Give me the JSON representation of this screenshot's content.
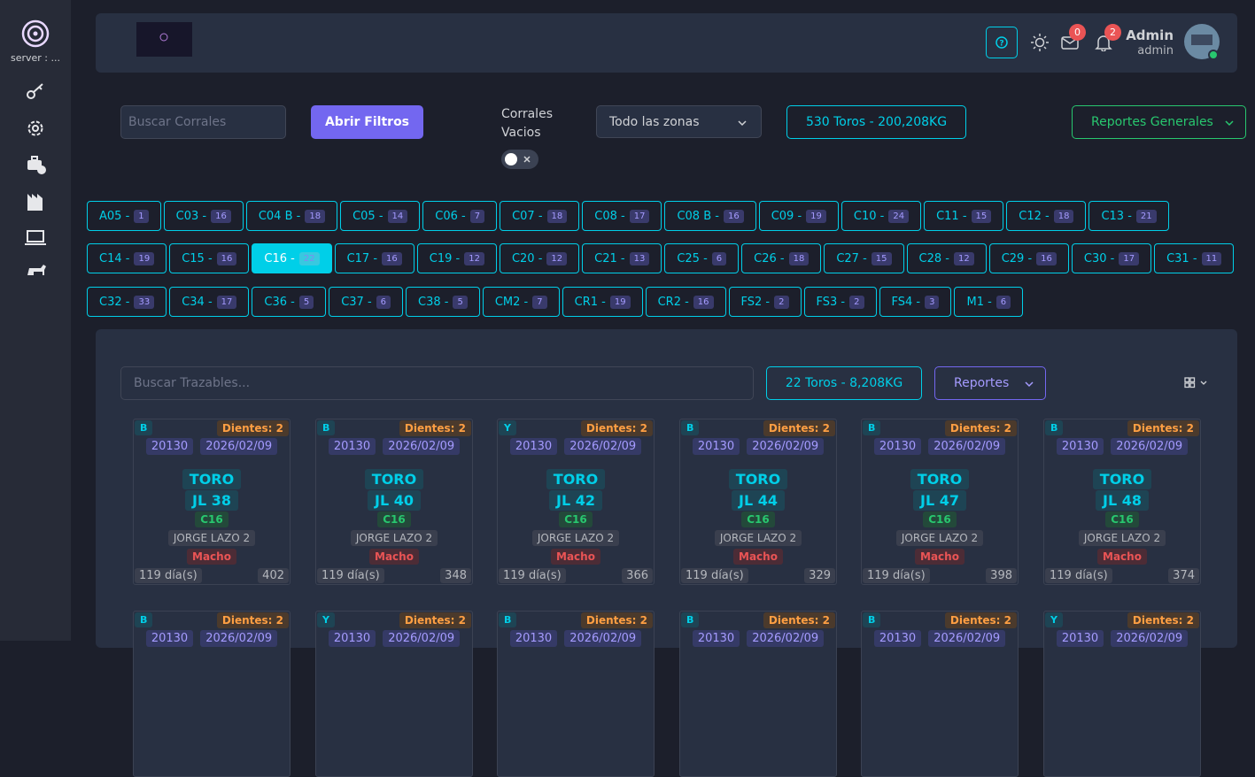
{
  "sidebar": {
    "server": "server : ..."
  },
  "header": {
    "user_name": "Admin",
    "user_role": "admin",
    "mail_count": 0,
    "notification_count": 2
  },
  "toolbar": {
    "search_placeholder": "Buscar Corrales",
    "filter_button": "Abrir Filtros",
    "empty_toggle_label": "Corrales Vacios",
    "zone_select": "Todo las zonas",
    "summary": "530 Toros - 200,208KG",
    "reports_button": "Reportes Generales"
  },
  "corrals": [
    [
      {
        "label": "A05 -",
        "count": 1
      },
      {
        "label": "C03 -",
        "count": 16
      },
      {
        "label": "C04 B -",
        "count": 18
      },
      {
        "label": "C05 -",
        "count": 14
      },
      {
        "label": "C06 -",
        "count": 7
      },
      {
        "label": "C07 -",
        "count": 18
      },
      {
        "label": "C08 -",
        "count": 17
      },
      {
        "label": "C08 B -",
        "count": 16
      },
      {
        "label": "C09 -",
        "count": 19
      },
      {
        "label": "C10 -",
        "count": 24
      },
      {
        "label": "C11 -",
        "count": 15
      },
      {
        "label": "C12 -",
        "count": 18
      },
      {
        "label": "C13 -",
        "count": 21
      }
    ],
    [
      {
        "label": "C14 -",
        "count": 19
      },
      {
        "label": "C15 -",
        "count": 16
      },
      {
        "label": "C16 -",
        "count": 22,
        "active": true
      },
      {
        "label": "C17 -",
        "count": 16
      },
      {
        "label": "C19 -",
        "count": 12
      },
      {
        "label": "C20 -",
        "count": 12
      },
      {
        "label": "C21 -",
        "count": 13
      },
      {
        "label": "C25 -",
        "count": 6
      },
      {
        "label": "C26 -",
        "count": 18
      },
      {
        "label": "C27 -",
        "count": 15
      },
      {
        "label": "C28 -",
        "count": 12
      },
      {
        "label": "C29 -",
        "count": 16
      },
      {
        "label": "C30 -",
        "count": 17
      },
      {
        "label": "C31 -",
        "count": 11
      }
    ],
    [
      {
        "label": "C32 -",
        "count": 33
      },
      {
        "label": "C34 -",
        "count": 17
      },
      {
        "label": "C36 -",
        "count": 5
      },
      {
        "label": "C37 -",
        "count": 6
      },
      {
        "label": "C38 -",
        "count": 5
      },
      {
        "label": "CM2 -",
        "count": 7
      },
      {
        "label": "CR1 -",
        "count": 19
      },
      {
        "label": "CR2 -",
        "count": 16
      },
      {
        "label": "FS2 -",
        "count": 2
      },
      {
        "label": "FS3 -",
        "count": 2
      },
      {
        "label": "FS4 -",
        "count": 3
      },
      {
        "label": "M1 -",
        "count": 6
      }
    ]
  ],
  "panel": {
    "search_placeholder": "Buscar Trazables...",
    "summary": "22 Toros - 8,208KG",
    "reports_button": "Reportes"
  },
  "cards": [
    {
      "type": "B",
      "teeth": "Dientes: 2",
      "code": "20130",
      "date": "2026/02/09",
      "kind": "TORO",
      "tag": "JL 38",
      "corral": "C16",
      "owner": "JORGE LAZO 2",
      "sex": "Macho",
      "days": "119 día(s)",
      "weight": 402
    },
    {
      "type": "B",
      "teeth": "Dientes: 2",
      "code": "20130",
      "date": "2026/02/09",
      "kind": "TORO",
      "tag": "JL 40",
      "corral": "C16",
      "owner": "JORGE LAZO 2",
      "sex": "Macho",
      "days": "119 día(s)",
      "weight": 348
    },
    {
      "type": "Y",
      "teeth": "Dientes: 2",
      "code": "20130",
      "date": "2026/02/09",
      "kind": "TORO",
      "tag": "JL 42",
      "corral": "C16",
      "owner": "JORGE LAZO 2",
      "sex": "Macho",
      "days": "119 día(s)",
      "weight": 366
    },
    {
      "type": "B",
      "teeth": "Dientes: 2",
      "code": "20130",
      "date": "2026/02/09",
      "kind": "TORO",
      "tag": "JL 44",
      "corral": "C16",
      "owner": "JORGE LAZO 2",
      "sex": "Macho",
      "days": "119 día(s)",
      "weight": 329
    },
    {
      "type": "B",
      "teeth": "Dientes: 2",
      "code": "20130",
      "date": "2026/02/09",
      "kind": "TORO",
      "tag": "JL 47",
      "corral": "C16",
      "owner": "JORGE LAZO 2",
      "sex": "Macho",
      "days": "119 día(s)",
      "weight": 398
    },
    {
      "type": "B",
      "teeth": "Dientes: 2",
      "code": "20130",
      "date": "2026/02/09",
      "kind": "TORO",
      "tag": "JL 48",
      "corral": "C16",
      "owner": "JORGE LAZO 2",
      "sex": "Macho",
      "days": "119 día(s)",
      "weight": 374
    }
  ],
  "cards_partial": [
    {
      "type": "B",
      "teeth": "Dientes: 2",
      "code": "20130",
      "date": "2026/02/09"
    },
    {
      "type": "Y",
      "teeth": "Dientes: 2",
      "code": "20130",
      "date": "2026/02/09"
    },
    {
      "type": "B",
      "teeth": "Dientes: 2",
      "code": "20130",
      "date": "2026/02/09"
    },
    {
      "type": "B",
      "teeth": "Dientes: 2",
      "code": "20130",
      "date": "2026/02/09"
    },
    {
      "type": "B",
      "teeth": "Dientes: 2",
      "code": "20130",
      "date": "2026/02/09"
    },
    {
      "type": "Y",
      "teeth": "Dientes: 2",
      "code": "20130",
      "date": "2026/02/09"
    }
  ]
}
